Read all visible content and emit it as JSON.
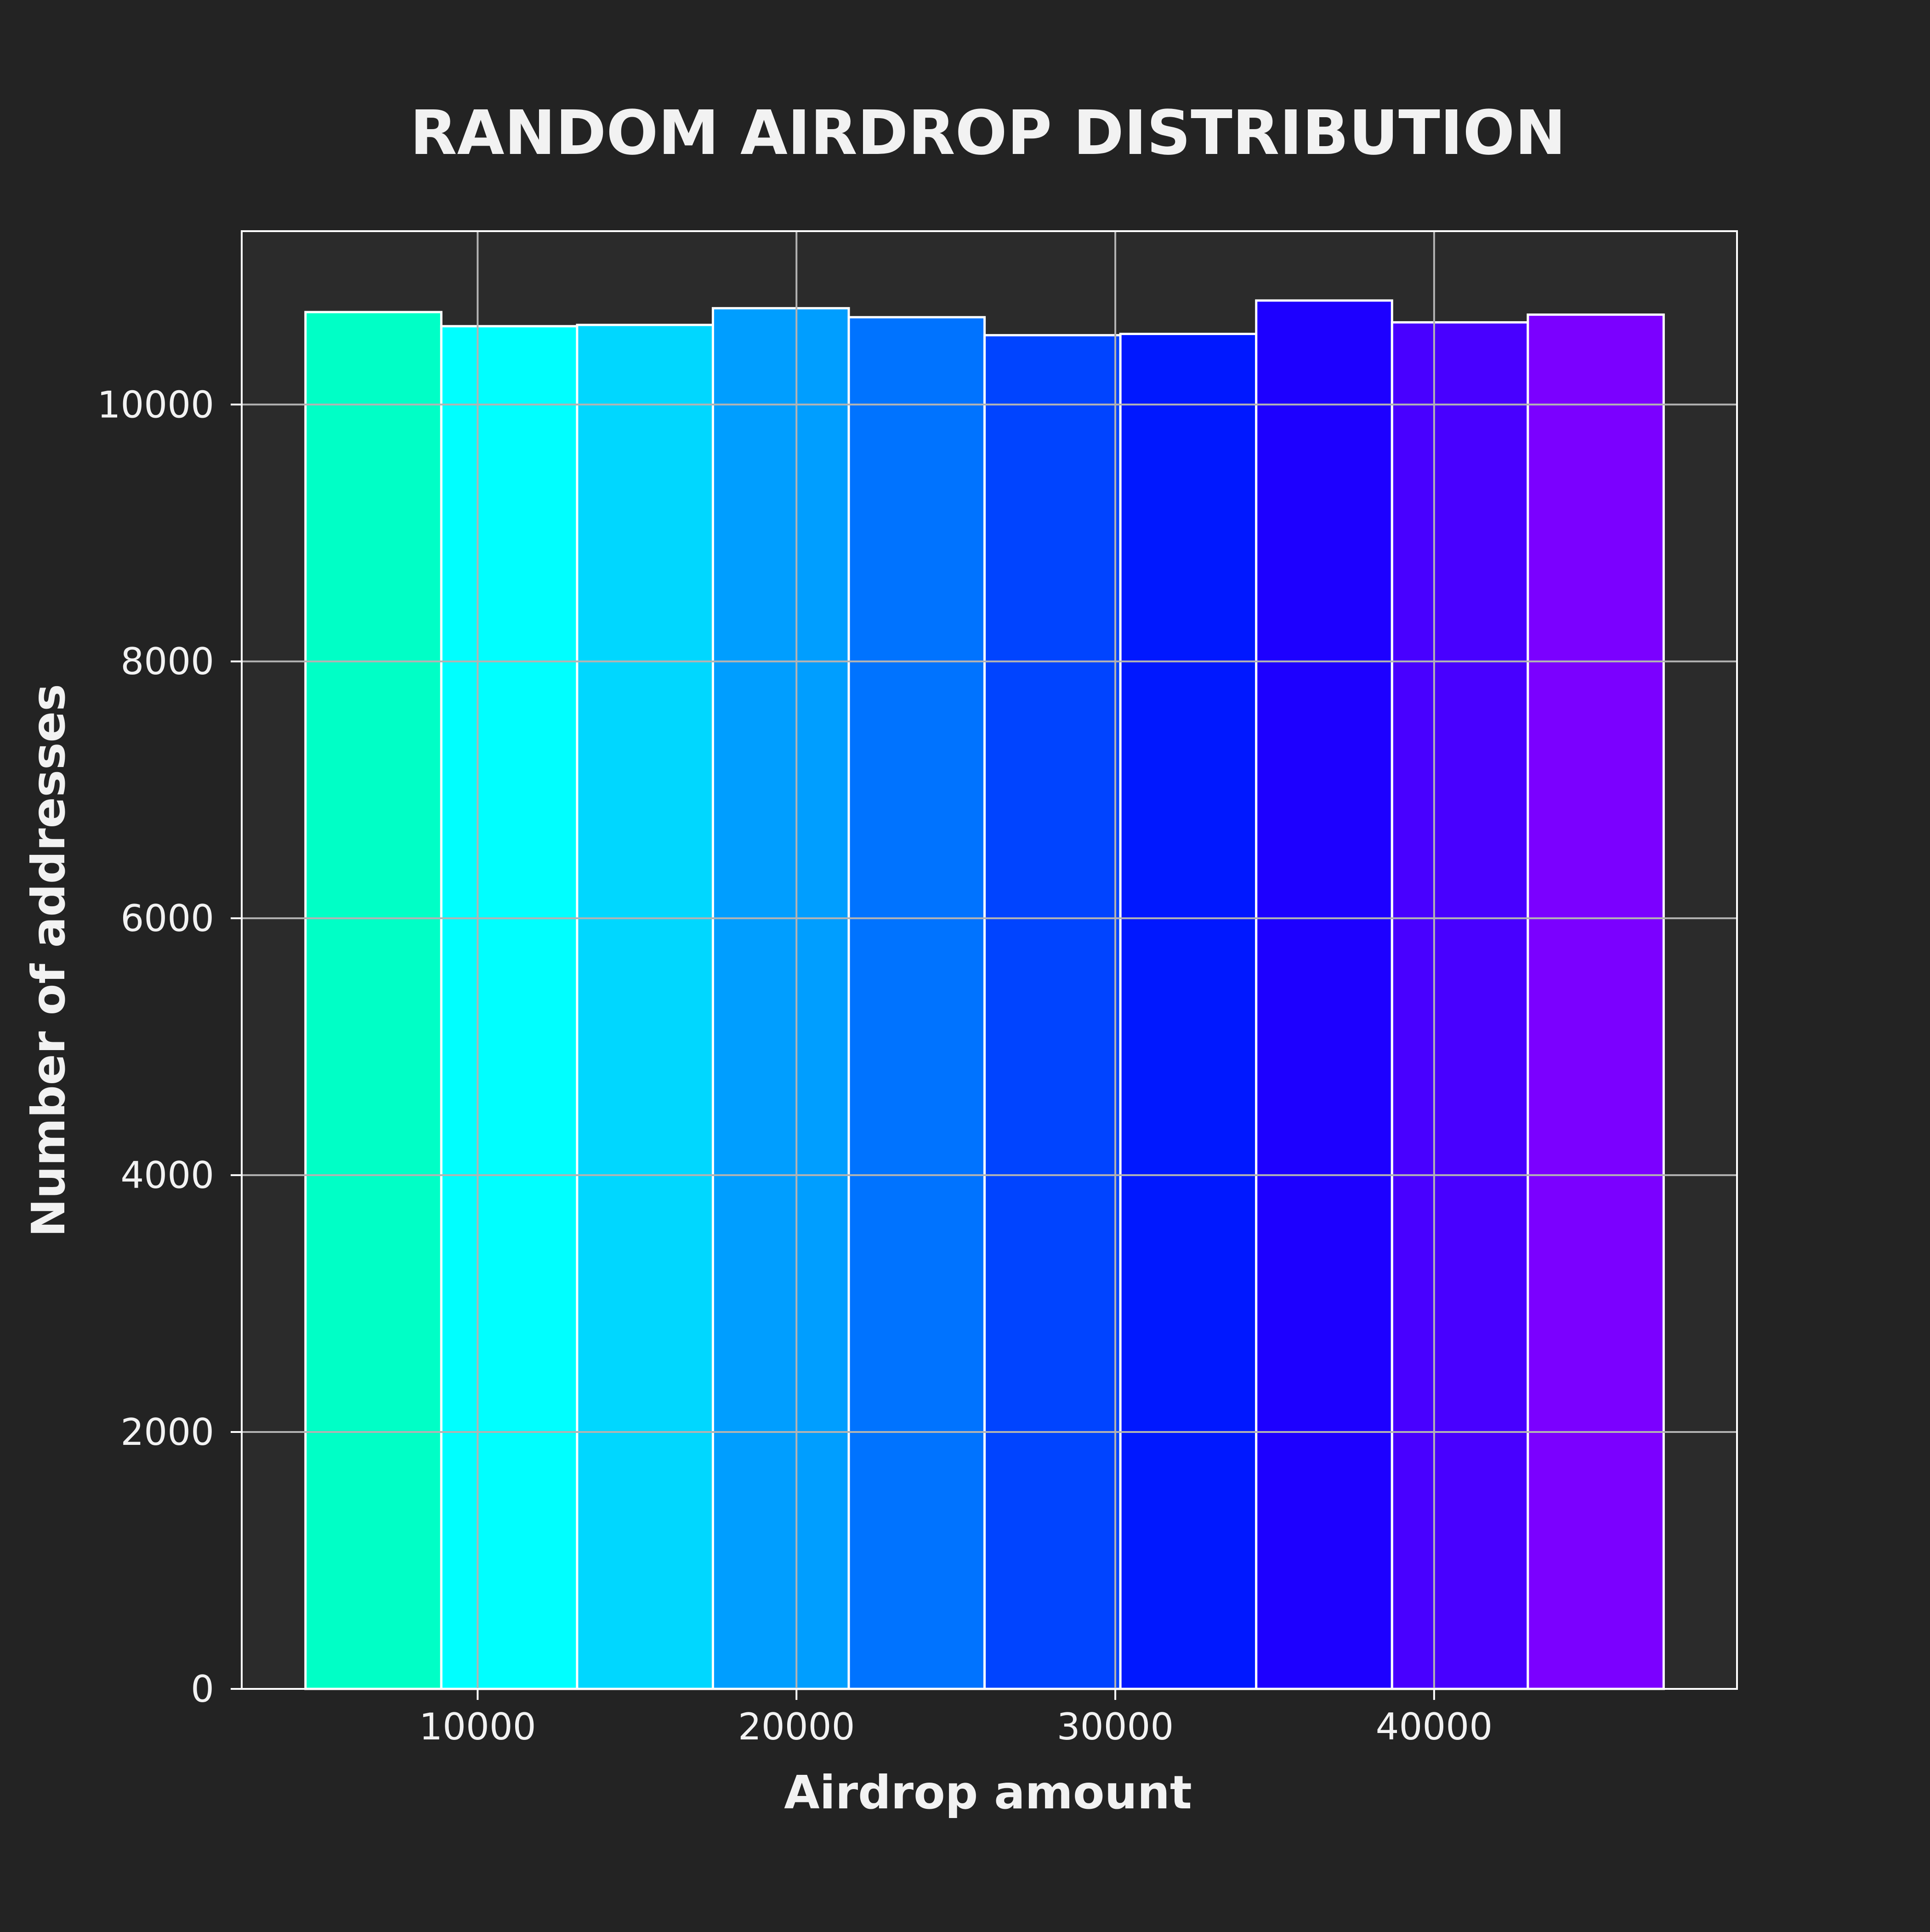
{
  "chart_data": {
    "type": "bar",
    "title": "RANDOM AIRDROP DISTRIBUTION",
    "xlabel": "Airdrop amount",
    "ylabel": "Number of addresses",
    "bin_edges": [
      4600,
      8860,
      13120,
      17380,
      21640,
      25900,
      30160,
      34420,
      38680,
      42940,
      47200
    ],
    "values": [
      10720,
      10610,
      10620,
      10750,
      10680,
      10540,
      10550,
      10810,
      10640,
      10700
    ],
    "bar_colors": [
      "#00ffc6",
      "#00ffff",
      "#00d7ff",
      "#009eff",
      "#0073ff",
      "#0044ff",
      "#0018ff",
      "#1d00ff",
      "#4800ff",
      "#7b00ff"
    ],
    "xlim": [
      2600,
      49500
    ],
    "ylim": [
      0,
      11350
    ],
    "xticks": [
      10000,
      20000,
      30000,
      40000
    ],
    "yticks": [
      0,
      2000,
      4000,
      6000,
      8000,
      10000
    ],
    "grid": true,
    "colors": {
      "figure_background": "#232323",
      "plot_background": "#2b2b2b",
      "bar_edge": "#ffffff",
      "grid": "#b3b3b3",
      "text": "#f2f2f2"
    }
  }
}
